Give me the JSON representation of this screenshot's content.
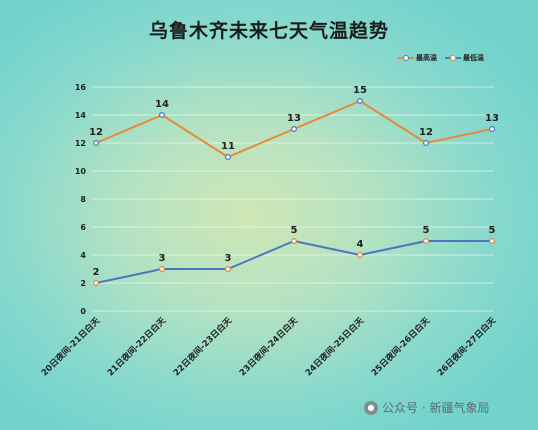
{
  "chart_data": {
    "type": "line",
    "title": "乌鲁木齐未来七天气温趋势",
    "categories": [
      "20日夜间-21日白天",
      "21日夜间-22日白天",
      "22日夜间-23日白天",
      "23日夜间-24日白天",
      "24日夜间-25日白天",
      "25日夜间-26日白天",
      "26日夜间-27日白天"
    ],
    "series": [
      {
        "name": "最高温",
        "values": [
          12,
          14,
          11,
          13,
          15,
          12,
          13
        ],
        "color": "#e58a3a",
        "marker_color": "#4a7bc8"
      },
      {
        "name": "最低温",
        "values": [
          2,
          3,
          3,
          5,
          4,
          5,
          5
        ],
        "color": "#4a78c0",
        "marker_color": "#e08a3a"
      }
    ],
    "yticks": [
      "0",
      "2",
      "4",
      "6",
      "8",
      "10",
      "12",
      "14",
      "16"
    ],
    "ylim": [
      0,
      16
    ],
    "grid": true,
    "legend": "top-right",
    "xlabel": "",
    "ylabel": ""
  },
  "watermark": {
    "icon": "wechat-icon",
    "text": "公众号 · 新疆气象局"
  }
}
